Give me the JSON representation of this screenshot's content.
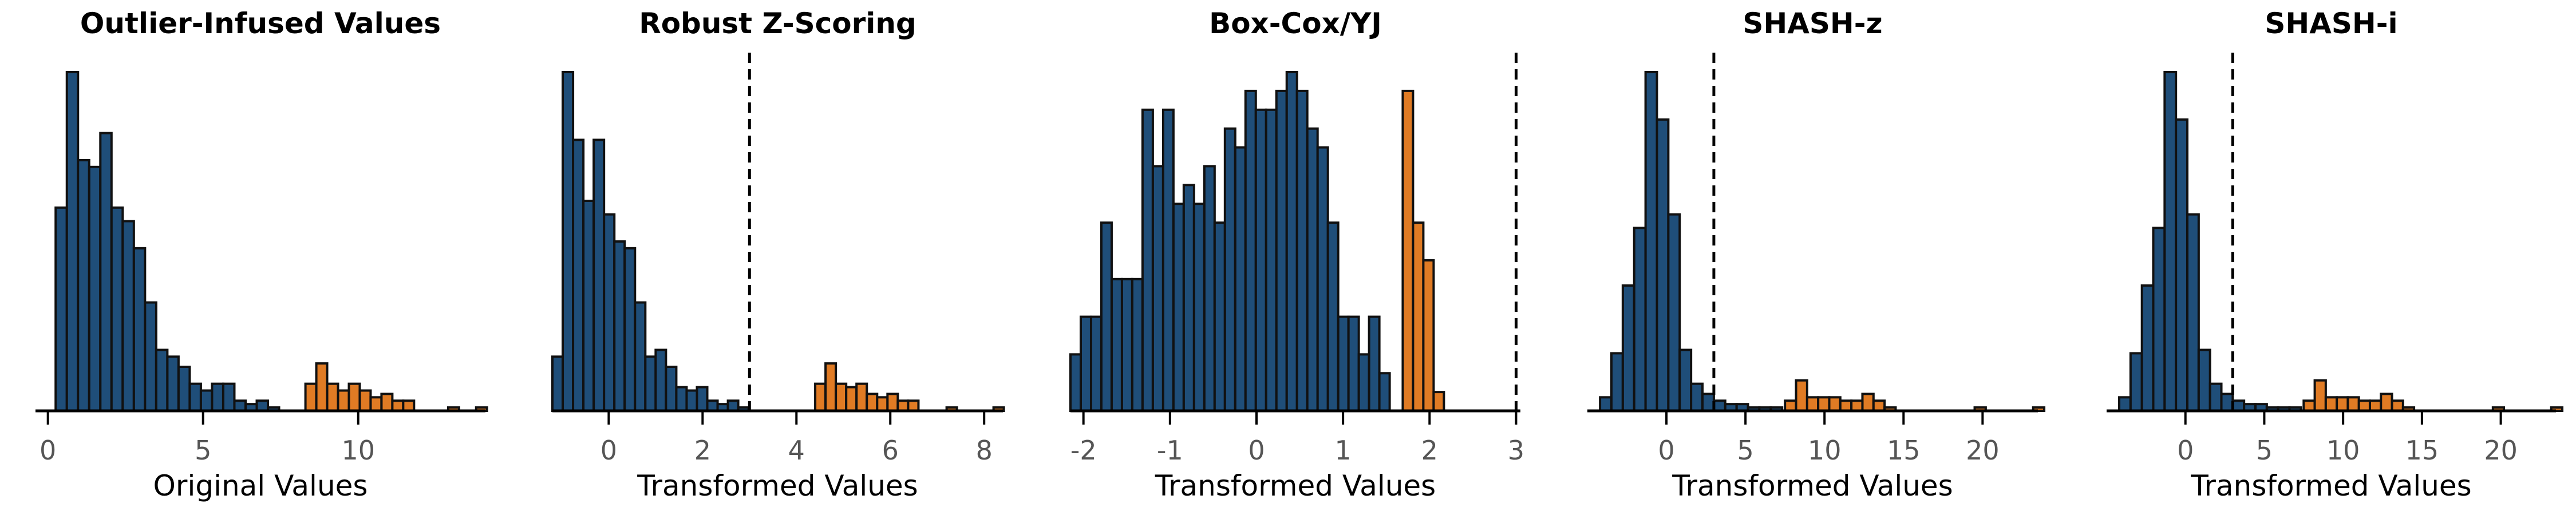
{
  "colors": {
    "normal": "#1f4e79",
    "outlier": "#e07b24",
    "edge": "#111111",
    "axis": "#000000",
    "tick_text": "#555555",
    "text": "#000000"
  },
  "chart_data": [
    {
      "type": "bar",
      "title": "Outlier-Infused Values",
      "xlabel": "Original Values",
      "xlim": [
        -0.4,
        14.1
      ],
      "xticks": [
        0,
        5,
        10
      ],
      "xtick_labels": [
        "0",
        "5",
        "10"
      ],
      "grid": false,
      "threshold": null,
      "series": [
        {
          "name": "",
          "role": "normal",
          "bin_start": 0.25,
          "bin_width": 0.36,
          "counts": [
            60,
            100,
            74,
            72,
            82,
            60,
            56,
            48,
            32,
            18,
            16,
            13,
            8,
            6,
            8,
            8,
            3,
            2,
            3,
            1
          ]
        },
        {
          "name": "",
          "role": "outlier",
          "x": [
            8.3,
            8.65,
            9.0,
            9.35,
            9.7,
            10.05,
            10.4,
            10.75,
            11.1,
            11.45,
            12.9,
            13.8
          ],
          "counts": [
            8,
            14,
            8,
            6,
            8,
            6,
            4,
            5,
            3,
            3,
            1,
            1
          ]
        }
      ]
    },
    {
      "type": "bar",
      "title": "Robust Z-Scoring",
      "xlabel": "Transformed Values",
      "xlim": [
        -1.2,
        8.4
      ],
      "xticks": [
        2,
        4,
        6,
        8
      ],
      "xtick_labels": [
        "2",
        "4",
        "6",
        "8"
      ],
      "xticks_extra": [
        0
      ],
      "xticks_extra_labels": [
        "0"
      ],
      "grid": false,
      "threshold": 3,
      "series": [
        {
          "name": "",
          "role": "normal",
          "bin_start": -1.2,
          "bin_width": 0.22,
          "counts": [
            16,
            100,
            80,
            62,
            80,
            58,
            50,
            48,
            32,
            16,
            18,
            13,
            7,
            6,
            7,
            3,
            2,
            3,
            1
          ]
        },
        {
          "name": "",
          "role": "outlier",
          "x": [
            4.4,
            4.62,
            4.84,
            5.06,
            5.28,
            5.5,
            5.72,
            5.94,
            6.16,
            6.38,
            7.2,
            8.2
          ],
          "counts": [
            8,
            14,
            8,
            7,
            8,
            5,
            4,
            5,
            3,
            3,
            1,
            1
          ]
        }
      ]
    },
    {
      "type": "bar",
      "title": "Box-Cox/YJ",
      "xlabel": "Transformed Values",
      "xlim": [
        -2.15,
        3.05
      ],
      "xticks": [
        -2,
        -1,
        0,
        1,
        2,
        3
      ],
      "xtick_labels": [
        "-2",
        "-1",
        "0",
        "1",
        "2",
        "3"
      ],
      "grid": false,
      "threshold": 3,
      "series": [
        {
          "name": "",
          "role": "normal",
          "bin_start": -2.15,
          "bin_width": 0.119,
          "counts": [
            3,
            5,
            5,
            10,
            7,
            7,
            7,
            16,
            13,
            16,
            11,
            12,
            11,
            13,
            10,
            15,
            14,
            17,
            16,
            16,
            17,
            18,
            17,
            15,
            14,
            10,
            5,
            5,
            3,
            5,
            2
          ]
        },
        {
          "name": "",
          "role": "outlier",
          "bin_start": 1.69,
          "bin_width": 0.119,
          "counts": [
            17,
            10,
            8,
            1
          ]
        }
      ]
    },
    {
      "type": "bar",
      "title": "SHASH-z",
      "xlabel": "Transformed Values",
      "xlim": [
        -5,
        23.5
      ],
      "xticks": [
        5,
        10,
        15,
        20
      ],
      "xtick_labels": [
        "5",
        "10",
        "15",
        "20"
      ],
      "xticks_extra": [
        0
      ],
      "xticks_extra_labels": [
        "0"
      ],
      "grid": false,
      "threshold": 3,
      "series": [
        {
          "name": "",
          "role": "normal",
          "bin_start": -4.2,
          "bin_width": 0.72,
          "counts": [
            4,
            17,
            37,
            54,
            100,
            86,
            58,
            18,
            8,
            5,
            3,
            2,
            2,
            1,
            1,
            1
          ]
        },
        {
          "name": "",
          "role": "outlier",
          "x": [
            7.5,
            8.2,
            8.9,
            9.6,
            10.3,
            11.0,
            11.7,
            12.4,
            13.1,
            13.8,
            19.5,
            23.2
          ],
          "counts": [
            3,
            9,
            4,
            4,
            4,
            3,
            3,
            5,
            3,
            1,
            1,
            1
          ]
        }
      ]
    },
    {
      "type": "bar",
      "title": "SHASH-i",
      "xlabel": "Transformed Values",
      "xlim": [
        -5,
        23.5
      ],
      "xticks": [
        5,
        10,
        15,
        20
      ],
      "xtick_labels": [
        "5",
        "10",
        "15",
        "20"
      ],
      "xticks_extra": [
        0
      ],
      "xticks_extra_labels": [
        "0"
      ],
      "grid": false,
      "threshold": 3,
      "series": [
        {
          "name": "",
          "role": "normal",
          "bin_start": -4.2,
          "bin_width": 0.72,
          "counts": [
            4,
            17,
            37,
            54,
            100,
            86,
            58,
            18,
            8,
            5,
            3,
            2,
            2,
            1,
            1,
            1
          ]
        },
        {
          "name": "",
          "role": "outlier",
          "x": [
            7.5,
            8.2,
            8.9,
            9.6,
            10.3,
            11.0,
            11.7,
            12.4,
            13.1,
            13.8,
            19.5,
            23.2
          ],
          "counts": [
            3,
            9,
            4,
            4,
            4,
            3,
            3,
            5,
            3,
            1,
            1,
            1
          ]
        }
      ]
    }
  ]
}
